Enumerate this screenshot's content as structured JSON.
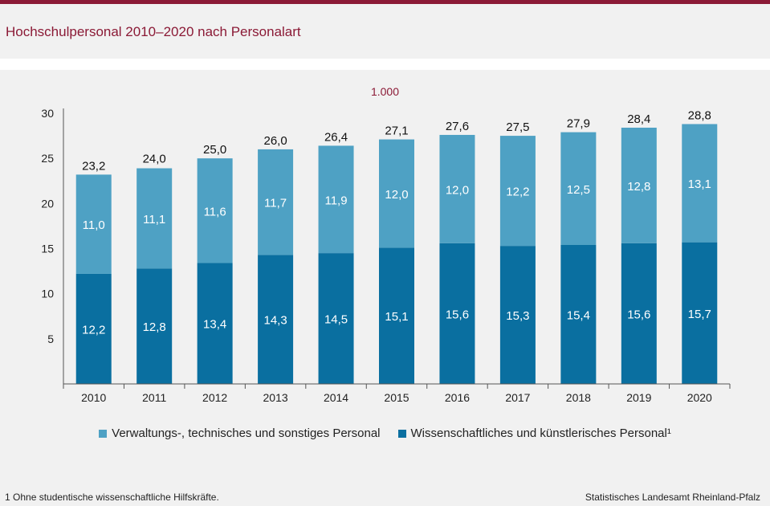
{
  "header": {
    "title": "Hochschulpersonal 2010–2020 nach Personalart"
  },
  "chart_data": {
    "type": "bar",
    "stacked": true,
    "unit_label": "1.000",
    "categories": [
      "2010",
      "2011",
      "2012",
      "2013",
      "2014",
      "2015",
      "2016",
      "2017",
      "2018",
      "2019",
      "2020"
    ],
    "series": [
      {
        "name": "Wissenschaftliches und künstlerisches Personal¹",
        "color": "#0a6fa0",
        "values": [
          12.2,
          12.8,
          13.4,
          14.3,
          14.5,
          15.1,
          15.6,
          15.3,
          15.4,
          15.6,
          15.7
        ],
        "labels": [
          "12,2",
          "12,8",
          "13,4",
          "14,3",
          "14,5",
          "15,1",
          "15,6",
          "15,3",
          "15,4",
          "15,6",
          "15,7"
        ]
      },
      {
        "name": "Verwaltungs-, technisches und sonstiges Personal",
        "color": "#4ea1c4",
        "values": [
          11.0,
          11.1,
          11.6,
          11.7,
          11.9,
          12.0,
          12.0,
          12.2,
          12.5,
          12.8,
          13.1
        ],
        "labels": [
          "11,0",
          "11,1",
          "11,6",
          "11,7",
          "11,9",
          "12,0",
          "12,0",
          "12,2",
          "12,5",
          "12,8",
          "13,1"
        ]
      }
    ],
    "totals": [
      "23,2",
      "24,0",
      "25,0",
      "26,0",
      "26,4",
      "27,1",
      "27,6",
      "27,5",
      "27,9",
      "28,4",
      "28,8"
    ],
    "total_values": [
      23.2,
      24.0,
      25.0,
      26.0,
      26.4,
      27.1,
      27.6,
      27.5,
      27.9,
      28.4,
      28.8
    ],
    "ylim": [
      0,
      30
    ],
    "y_ticks": [
      "5",
      "10",
      "15",
      "20",
      "25",
      "30"
    ],
    "y_tick_values": [
      5,
      10,
      15,
      20,
      25,
      30
    ],
    "grid": false,
    "legend_position": "bottom"
  },
  "legend": {
    "items": [
      {
        "label": "Verwaltungs-, technisches und sonstiges Personal",
        "color": "#4ea1c4"
      },
      {
        "label": "Wissenschaftliches und künstlerisches Personal¹",
        "color": "#0a6fa0"
      }
    ]
  },
  "footer": {
    "footnote": "1 Ohne studentische wissenschaftliche Hilfskräfte.",
    "source": "Statistisches Landesamt Rheinland-Pfalz"
  }
}
